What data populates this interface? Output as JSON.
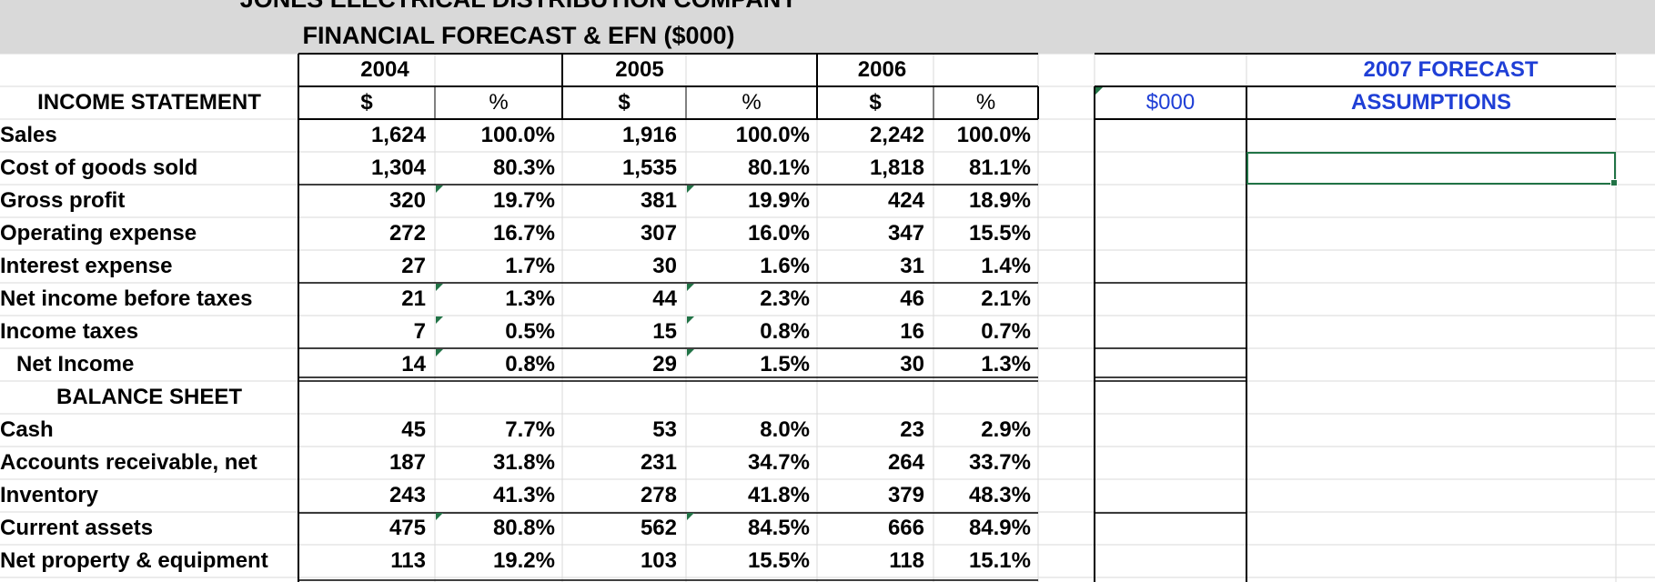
{
  "sheet": {
    "title_line1": "JONES ELECTRICAL  DISTRIBUTION COMPANY",
    "title_line2": "FINANCIAL FORECAST & EFN ($000)"
  },
  "years": [
    "2004",
    "2005",
    "2006"
  ],
  "units": {
    "dollar": "$",
    "percent": "%"
  },
  "forecast": {
    "year_label": "2007  FORECAST",
    "assumptions_label": "ASSUMPTIONS",
    "unit_label": "$000"
  },
  "income_statement": {
    "header": "INCOME STATEMENT",
    "rows": [
      {
        "label": "Sales",
        "v2004": "1,624",
        "p2004": "100.0%",
        "v2005": "1,916",
        "p2005": "100.0%",
        "v2006": "2,242",
        "p2006": "100.0%"
      },
      {
        "label": "Cost of goods sold",
        "v2004": "1,304",
        "p2004": "80.3%",
        "v2005": "1,535",
        "p2005": "80.1%",
        "v2006": "1,818",
        "p2006": "81.1%"
      },
      {
        "label": "Gross profit",
        "v2004": "320",
        "p2004": "19.7%",
        "v2005": "381",
        "p2005": "19.9%",
        "v2006": "424",
        "p2006": "18.9%"
      },
      {
        "label": "Operating expense",
        "v2004": "272",
        "p2004": "16.7%",
        "v2005": "307",
        "p2005": "16.0%",
        "v2006": "347",
        "p2006": "15.5%"
      },
      {
        "label": "Interest expense",
        "v2004": "27",
        "p2004": "1.7%",
        "v2005": "30",
        "p2005": "1.6%",
        "v2006": "31",
        "p2006": "1.4%"
      },
      {
        "label": "Net income before taxes",
        "v2004": "21",
        "p2004": "1.3%",
        "v2005": "44",
        "p2005": "2.3%",
        "v2006": "46",
        "p2006": "2.1%"
      },
      {
        "label": "Income taxes",
        "v2004": "7",
        "p2004": "0.5%",
        "v2005": "15",
        "p2005": "0.8%",
        "v2006": "16",
        "p2006": "0.7%"
      },
      {
        "label": "Net Income",
        "v2004": "14",
        "p2004": "0.8%",
        "v2005": "29",
        "p2005": "1.5%",
        "v2006": "30",
        "p2006": "1.3%"
      }
    ]
  },
  "balance_sheet": {
    "header": "BALANCE SHEET",
    "rows": [
      {
        "label": "Cash",
        "v2004": "45",
        "p2004": "7.7%",
        "v2005": "53",
        "p2005": "8.0%",
        "v2006": "23",
        "p2006": "2.9%"
      },
      {
        "label": "Accounts receivable, net",
        "v2004": "187",
        "p2004": "31.8%",
        "v2005": "231",
        "p2005": "34.7%",
        "v2006": "264",
        "p2006": "33.7%"
      },
      {
        "label": "Inventory",
        "v2004": "243",
        "p2004": "41.3%",
        "v2005": "278",
        "p2005": "41.8%",
        "v2006": "379",
        "p2006": "48.3%"
      },
      {
        "label": "Current assets",
        "v2004": "475",
        "p2004": "80.8%",
        "v2005": "562",
        "p2005": "84.5%",
        "v2006": "666",
        "p2006": "84.9%"
      },
      {
        "label": "Net property & equipment",
        "v2004": "113",
        "p2004": "19.2%",
        "v2005": "103",
        "p2005": "15.5%",
        "v2006": "118",
        "p2006": "15.1%"
      }
    ]
  },
  "colors": {
    "banner": "#d9d9d9",
    "accent_blue": "#1f3fd6",
    "selection_green": "#217346",
    "gridline": "#dadada"
  }
}
